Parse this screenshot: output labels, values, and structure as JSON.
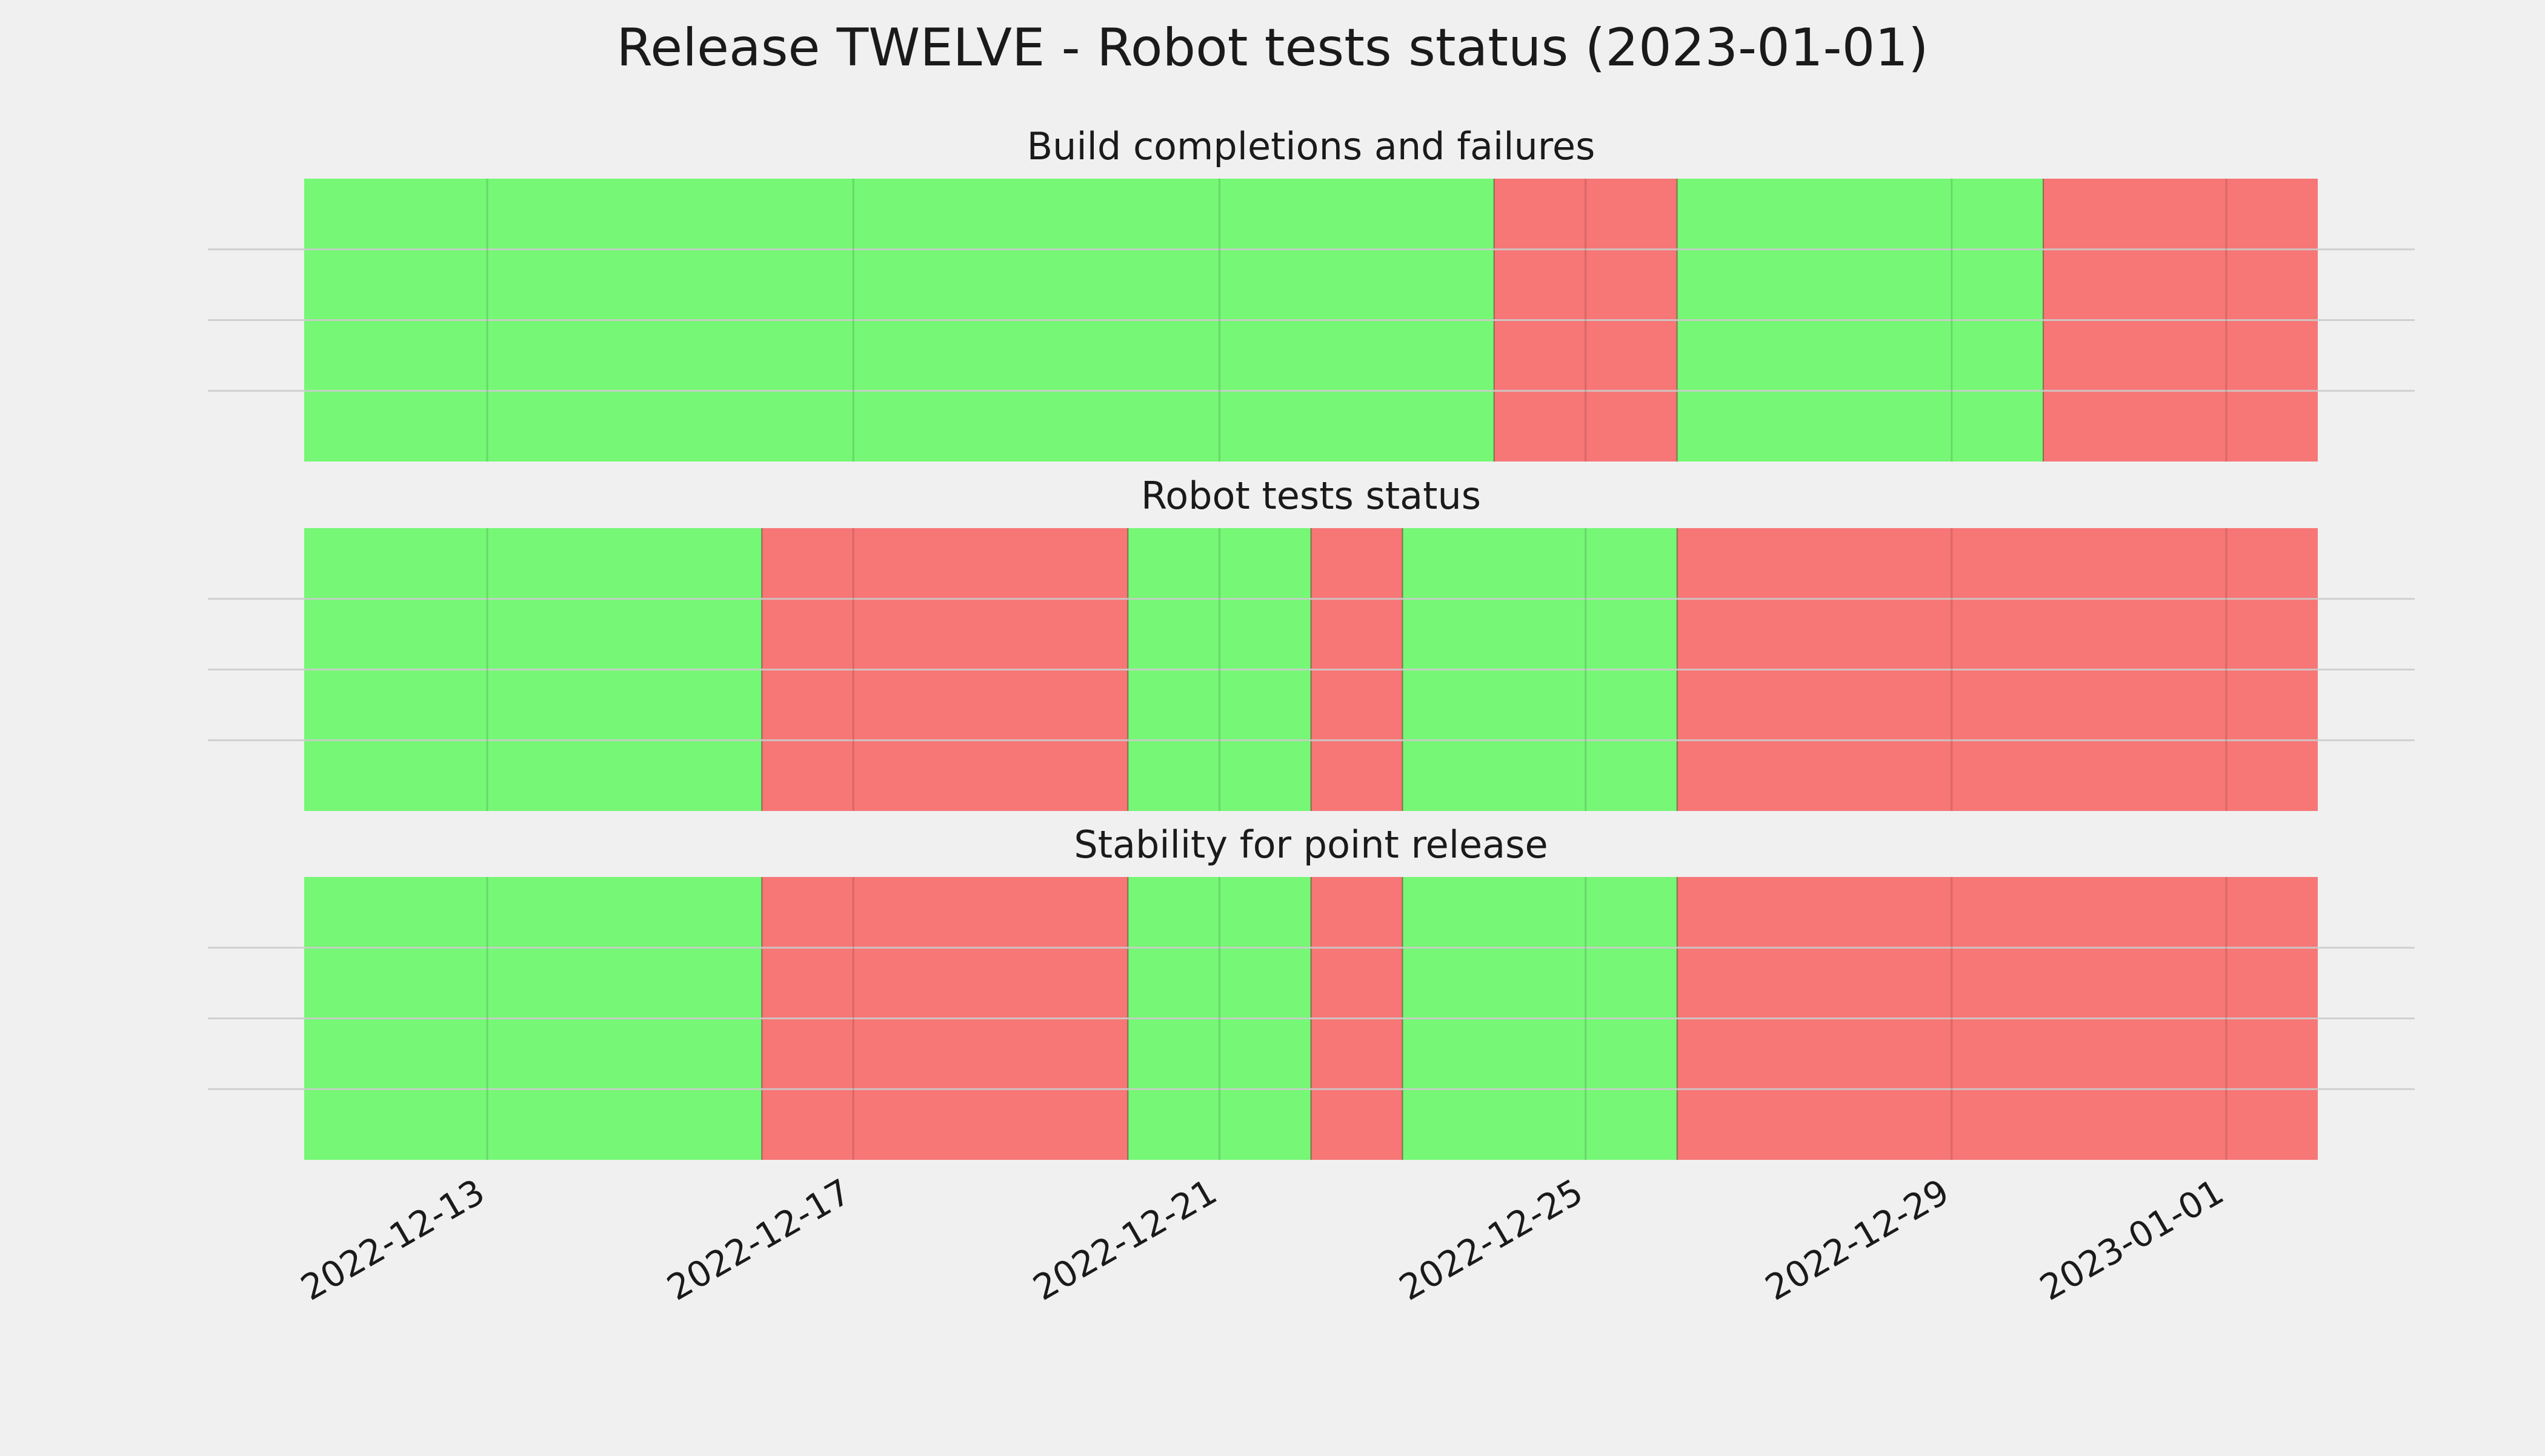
{
  "title": "Release TWELVE - Robot tests status (2023-01-01)",
  "colors": {
    "pass": "#76f776",
    "fail": "#f77676",
    "background": "#f0f0f0",
    "grid": "#cbcbcb"
  },
  "chart_data": {
    "type": "timeline",
    "x_axis": {
      "type": "date",
      "range": [
        "2022-12-11",
        "2023-01-02"
      ],
      "ticks": [
        "2022-12-13",
        "2022-12-17",
        "2022-12-21",
        "2022-12-25",
        "2022-12-29",
        "2023-01-01"
      ]
    },
    "grid": true,
    "panels": [
      {
        "title": "Build completions and failures",
        "segments": [
          {
            "start": "2022-12-11",
            "end": "2022-12-24",
            "status": "pass"
          },
          {
            "start": "2022-12-24",
            "end": "2022-12-26",
            "status": "fail"
          },
          {
            "start": "2022-12-26",
            "end": "2022-12-30",
            "status": "pass"
          },
          {
            "start": "2022-12-30",
            "end": "2023-01-02",
            "status": "fail"
          }
        ]
      },
      {
        "title": "Robot tests status",
        "segments": [
          {
            "start": "2022-12-11",
            "end": "2022-12-16",
            "status": "pass"
          },
          {
            "start": "2022-12-16",
            "end": "2022-12-20",
            "status": "fail"
          },
          {
            "start": "2022-12-20",
            "end": "2022-12-22",
            "status": "pass"
          },
          {
            "start": "2022-12-22",
            "end": "2022-12-23",
            "status": "fail"
          },
          {
            "start": "2022-12-23",
            "end": "2022-12-26",
            "status": "pass"
          },
          {
            "start": "2022-12-26",
            "end": "2023-01-02",
            "status": "fail"
          }
        ]
      },
      {
        "title": "Stability for point release",
        "segments": [
          {
            "start": "2022-12-11",
            "end": "2022-12-16",
            "status": "pass"
          },
          {
            "start": "2022-12-16",
            "end": "2022-12-20",
            "status": "fail"
          },
          {
            "start": "2022-12-20",
            "end": "2022-12-22",
            "status": "pass"
          },
          {
            "start": "2022-12-22",
            "end": "2022-12-23",
            "status": "fail"
          },
          {
            "start": "2022-12-23",
            "end": "2022-12-26",
            "status": "pass"
          },
          {
            "start": "2022-12-26",
            "end": "2023-01-02",
            "status": "fail"
          }
        ]
      }
    ]
  }
}
